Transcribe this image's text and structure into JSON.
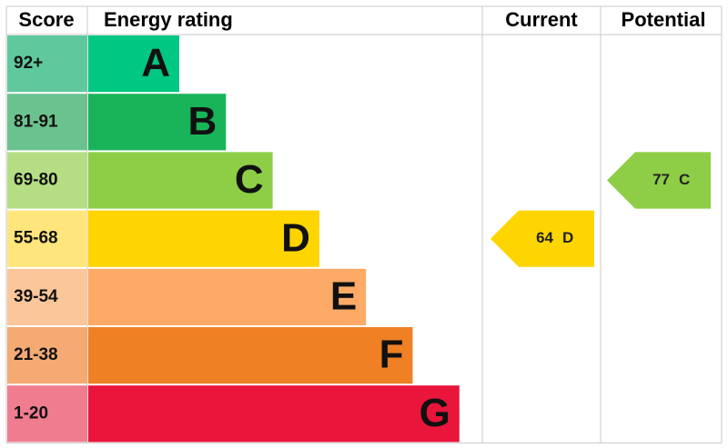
{
  "header": {
    "score": "Score",
    "rating": "Energy rating",
    "current": "Current",
    "potential": "Potential"
  },
  "bands": [
    {
      "range": "92+",
      "letter": "A",
      "color": "#00c781",
      "light": "#5fc99d"
    },
    {
      "range": "81-91",
      "letter": "B",
      "color": "#19b459",
      "light": "#6cc28e"
    },
    {
      "range": "69-80",
      "letter": "C",
      "color": "#8dce46",
      "light": "#b5de84"
    },
    {
      "range": "55-68",
      "letter": "D",
      "color": "#ffd500",
      "light": "#ffe57c"
    },
    {
      "range": "39-54",
      "letter": "E",
      "color": "#fcaa65",
      "light": "#fcc69b"
    },
    {
      "range": "21-38",
      "letter": "F",
      "color": "#ef8023",
      "light": "#f4aa72"
    },
    {
      "range": "1-20",
      "letter": "G",
      "color": "#e9153b",
      "light": "#f07c8f"
    }
  ],
  "current": {
    "value": 64,
    "letter": "D"
  },
  "potential": {
    "value": 77,
    "letter": "C"
  }
}
